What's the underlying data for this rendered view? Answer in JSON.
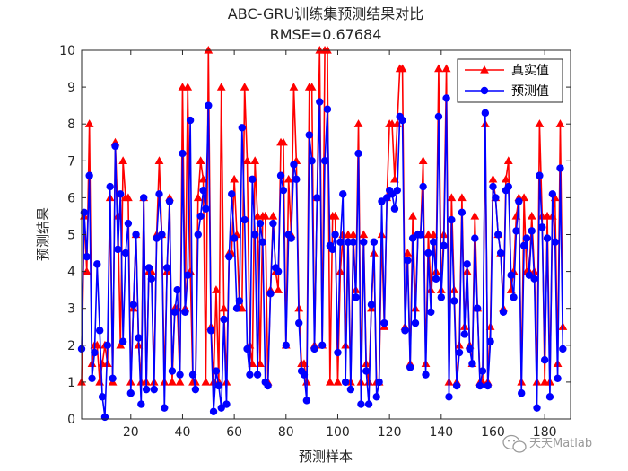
{
  "chart_data": {
    "type": "line",
    "title": "ABC-GRU训练集预测结果对比",
    "subtitle": "RMSE=0.67684",
    "xlabel": "预测样本",
    "ylabel": "预测结果",
    "xlim": [
      1,
      190
    ],
    "ylim": [
      0,
      10
    ],
    "xticks": [
      20,
      40,
      60,
      80,
      100,
      120,
      140,
      160,
      180
    ],
    "yticks": [
      0,
      1,
      2,
      3,
      4,
      5,
      6,
      7,
      8,
      9,
      10
    ],
    "grid": false,
    "legend_position": "top-right",
    "series": [
      {
        "name": "真实值",
        "color": "#ff0000",
        "marker": "triangle",
        "values": [
          1,
          5.5,
          4,
          8,
          1.5,
          2,
          2,
          1,
          1.5,
          2,
          1.5,
          6,
          1,
          7.5,
          5.5,
          2,
          7,
          6,
          6,
          1,
          3,
          5,
          2,
          1,
          6,
          1,
          4,
          4,
          1,
          5,
          7,
          5,
          1,
          4,
          6,
          1,
          3,
          3,
          1,
          9,
          3,
          9,
          4,
          1,
          1,
          6,
          7,
          6.5,
          1,
          10,
          2.5,
          1,
          3.5,
          1,
          9,
          3,
          1,
          4.5,
          4.5,
          6.5,
          5,
          3,
          3,
          9,
          7,
          2,
          1.5,
          7,
          5.5,
          1.5,
          5.5,
          5.5,
          1,
          3.5,
          5.5,
          4,
          3.5,
          7.5,
          7.5,
          2,
          6.5,
          5,
          9,
          7,
          3,
          1.5,
          1.5,
          1,
          9,
          9,
          2,
          6,
          10,
          2,
          10,
          10,
          1,
          5.5,
          5.5,
          1,
          4,
          5,
          2,
          5,
          1,
          5,
          3.5,
          8,
          1,
          5,
          1.5,
          1,
          3,
          4.5,
          1,
          1,
          5,
          2.5,
          6,
          8,
          8,
          6.5,
          8,
          9.5,
          9.5,
          2.5,
          4.5,
          1.5,
          5.5,
          3,
          5,
          5,
          7,
          1.5,
          5,
          3.5,
          5,
          4,
          9.5,
          3.5,
          5,
          9.5,
          1,
          6,
          3.5,
          1,
          2,
          6,
          2.5,
          4,
          2,
          1.5,
          5.5,
          3,
          1,
          1,
          8,
          1,
          2.5,
          6.5,
          6,
          5,
          4.5,
          3,
          6.5,
          7,
          3.5,
          4,
          5.5,
          6,
          1,
          6,
          4,
          4,
          5.5,
          4,
          1,
          8,
          5.5,
          1,
          5.5,
          1,
          5.5,
          6,
          1.5,
          8,
          2.5
        ]
      },
      {
        "name": "预测值",
        "color": "#0000ff",
        "marker": "circle",
        "values": [
          1.9,
          5.6,
          4.4,
          6.6,
          1.1,
          1.8,
          4.2,
          2.4,
          0.6,
          0.05,
          2,
          6.3,
          1.1,
          7.4,
          4.6,
          6.1,
          2.1,
          4.5,
          5.3,
          0.7,
          3.1,
          5,
          2.2,
          0.4,
          6,
          0.8,
          4.1,
          3.8,
          0.8,
          4.9,
          6.1,
          5,
          0.3,
          4.1,
          5.9,
          1.3,
          2.9,
          3.5,
          1.2,
          7.2,
          2.9,
          3.9,
          8.1,
          1.2,
          0.8,
          5,
          5.5,
          6.2,
          5.7,
          8.5,
          2.4,
          0.2,
          1.3,
          0.9,
          0.3,
          2.7,
          0.4,
          4.4,
          6.1,
          4.9,
          3,
          3.2,
          7.9,
          5.4,
          1.9,
          1.2,
          6.5,
          5,
          1.2,
          5.3,
          4.8,
          1,
          0.9,
          3.4,
          5.3,
          4.1,
          4,
          6.6,
          6.2,
          2,
          5,
          4.9,
          6.9,
          6.5,
          2.6,
          1.3,
          1.2,
          0.5,
          7.7,
          7,
          1.9,
          6,
          8.6,
          2,
          7,
          8.4,
          4.7,
          4.6,
          5,
          1.8,
          4.8,
          6.1,
          1,
          4.8,
          0.8,
          4.8,
          3.3,
          7.2,
          0.4,
          4.8,
          1.3,
          0.4,
          3.1,
          4.8,
          0.6,
          1,
          5.9,
          2.6,
          6,
          6.2,
          6.1,
          5.7,
          6.2,
          8.2,
          8.1,
          2.4,
          4.3,
          1.4,
          4.9,
          2.6,
          5,
          5,
          6.3,
          1.2,
          4.5,
          2.9,
          4.8,
          3.8,
          8.2,
          3.3,
          4.7,
          8.7,
          0.6,
          5.4,
          3.2,
          0.9,
          1.8,
          5.6,
          2.3,
          4.2,
          1.9,
          1.5,
          4.9,
          3,
          0.9,
          1.3,
          8.3,
          0.9,
          2.1,
          6.3,
          6,
          5,
          4.5,
          2.9,
          6.2,
          6.3,
          3.9,
          3.3,
          5.1,
          5.9,
          0.7,
          4.7,
          4.9,
          3.9,
          5.1,
          3.8,
          0.3,
          6.6,
          5.2,
          1.6,
          4.9,
          0.6,
          6.1,
          4.8,
          1.1,
          6.8,
          1.9
        ]
      }
    ]
  },
  "watermark": {
    "text": "天天Matlab"
  }
}
